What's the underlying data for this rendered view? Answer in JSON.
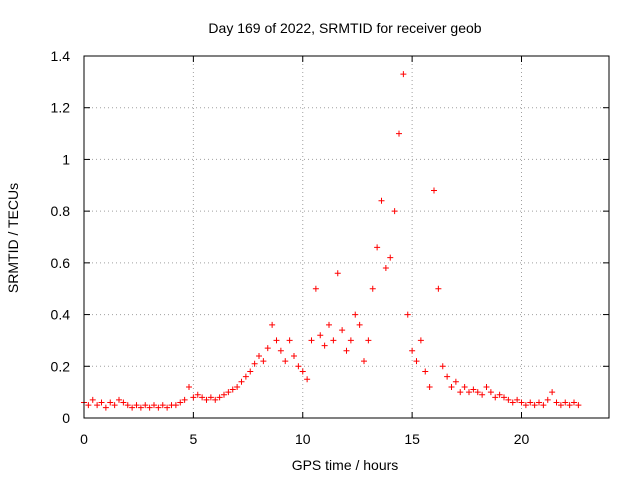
{
  "chart_data": {
    "type": "scatter",
    "title": "Day 169 of 2022, SRMTID for receiver geob",
    "xlabel": "GPS time / hours",
    "ylabel": "SRMTID / TECUs",
    "xlim": [
      0,
      24
    ],
    "ylim": [
      0,
      1.4
    ],
    "grid": true,
    "marker": "plus",
    "color": "#ff0000",
    "x_ticks": [
      0,
      5,
      10,
      15,
      20
    ],
    "x_tick_labels": [
      "0",
      "5",
      "10",
      "15",
      "20"
    ],
    "y_ticks": [
      0,
      0.2,
      0.4,
      0.6,
      0.8,
      1.0,
      1.2,
      1.4
    ],
    "y_tick_labels": [
      "0",
      "0.2",
      "0.4",
      "0.6",
      "0.8",
      "1",
      "1.2",
      "1.4"
    ],
    "series": [
      {
        "name": "SRMTID",
        "points": [
          [
            0.0,
            0.06
          ],
          [
            0.2,
            0.05
          ],
          [
            0.4,
            0.07
          ],
          [
            0.6,
            0.05
          ],
          [
            0.8,
            0.06
          ],
          [
            1.0,
            0.04
          ],
          [
            1.2,
            0.06
          ],
          [
            1.4,
            0.05
          ],
          [
            1.6,
            0.07
          ],
          [
            1.8,
            0.06
          ],
          [
            2.0,
            0.05
          ],
          [
            2.2,
            0.04
          ],
          [
            2.4,
            0.05
          ],
          [
            2.6,
            0.04
          ],
          [
            2.8,
            0.05
          ],
          [
            3.0,
            0.04
          ],
          [
            3.2,
            0.05
          ],
          [
            3.4,
            0.04
          ],
          [
            3.6,
            0.05
          ],
          [
            3.8,
            0.04
          ],
          [
            4.0,
            0.05
          ],
          [
            4.2,
            0.05
          ],
          [
            4.4,
            0.06
          ],
          [
            4.6,
            0.07
          ],
          [
            4.8,
            0.12
          ],
          [
            5.0,
            0.08
          ],
          [
            5.2,
            0.09
          ],
          [
            5.4,
            0.08
          ],
          [
            5.6,
            0.07
          ],
          [
            5.8,
            0.08
          ],
          [
            6.0,
            0.07
          ],
          [
            6.2,
            0.08
          ],
          [
            6.4,
            0.09
          ],
          [
            6.6,
            0.1
          ],
          [
            6.8,
            0.11
          ],
          [
            7.0,
            0.12
          ],
          [
            7.2,
            0.14
          ],
          [
            7.4,
            0.16
          ],
          [
            7.6,
            0.18
          ],
          [
            7.8,
            0.21
          ],
          [
            8.0,
            0.24
          ],
          [
            8.2,
            0.22
          ],
          [
            8.4,
            0.27
          ],
          [
            8.6,
            0.36
          ],
          [
            8.8,
            0.3
          ],
          [
            9.0,
            0.26
          ],
          [
            9.2,
            0.22
          ],
          [
            9.4,
            0.3
          ],
          [
            9.6,
            0.24
          ],
          [
            9.8,
            0.2
          ],
          [
            10.0,
            0.18
          ],
          [
            10.2,
            0.15
          ],
          [
            10.4,
            0.3
          ],
          [
            10.6,
            0.5
          ],
          [
            10.8,
            0.32
          ],
          [
            11.0,
            0.28
          ],
          [
            11.2,
            0.36
          ],
          [
            11.4,
            0.3
          ],
          [
            11.6,
            0.56
          ],
          [
            11.8,
            0.34
          ],
          [
            12.0,
            0.26
          ],
          [
            12.2,
            0.3
          ],
          [
            12.4,
            0.4
          ],
          [
            12.6,
            0.36
          ],
          [
            12.8,
            0.22
          ],
          [
            13.0,
            0.3
          ],
          [
            13.2,
            0.5
          ],
          [
            13.4,
            0.66
          ],
          [
            13.6,
            0.84
          ],
          [
            13.8,
            0.58
          ],
          [
            14.0,
            0.62
          ],
          [
            14.2,
            0.8
          ],
          [
            14.4,
            1.1
          ],
          [
            14.6,
            1.33
          ],
          [
            14.8,
            0.4
          ],
          [
            15.0,
            0.26
          ],
          [
            15.2,
            0.22
          ],
          [
            15.4,
            0.3
          ],
          [
            15.6,
            0.18
          ],
          [
            15.8,
            0.12
          ],
          [
            16.0,
            0.88
          ],
          [
            16.2,
            0.5
          ],
          [
            16.4,
            0.2
          ],
          [
            16.6,
            0.16
          ],
          [
            16.8,
            0.12
          ],
          [
            17.0,
            0.14
          ],
          [
            17.2,
            0.1
          ],
          [
            17.4,
            0.12
          ],
          [
            17.6,
            0.1
          ],
          [
            17.8,
            0.11
          ],
          [
            18.0,
            0.1
          ],
          [
            18.2,
            0.09
          ],
          [
            18.4,
            0.12
          ],
          [
            18.6,
            0.1
          ],
          [
            18.8,
            0.08
          ],
          [
            19.0,
            0.09
          ],
          [
            19.2,
            0.08
          ],
          [
            19.4,
            0.07
          ],
          [
            19.6,
            0.06
          ],
          [
            19.8,
            0.07
          ],
          [
            20.0,
            0.06
          ],
          [
            20.2,
            0.05
          ],
          [
            20.4,
            0.06
          ],
          [
            20.6,
            0.05
          ],
          [
            20.8,
            0.06
          ],
          [
            21.0,
            0.05
          ],
          [
            21.2,
            0.07
          ],
          [
            21.4,
            0.1
          ],
          [
            21.6,
            0.06
          ],
          [
            21.8,
            0.05
          ],
          [
            22.0,
            0.06
          ],
          [
            22.2,
            0.05
          ],
          [
            22.4,
            0.06
          ],
          [
            22.6,
            0.05
          ]
        ]
      }
    ]
  }
}
